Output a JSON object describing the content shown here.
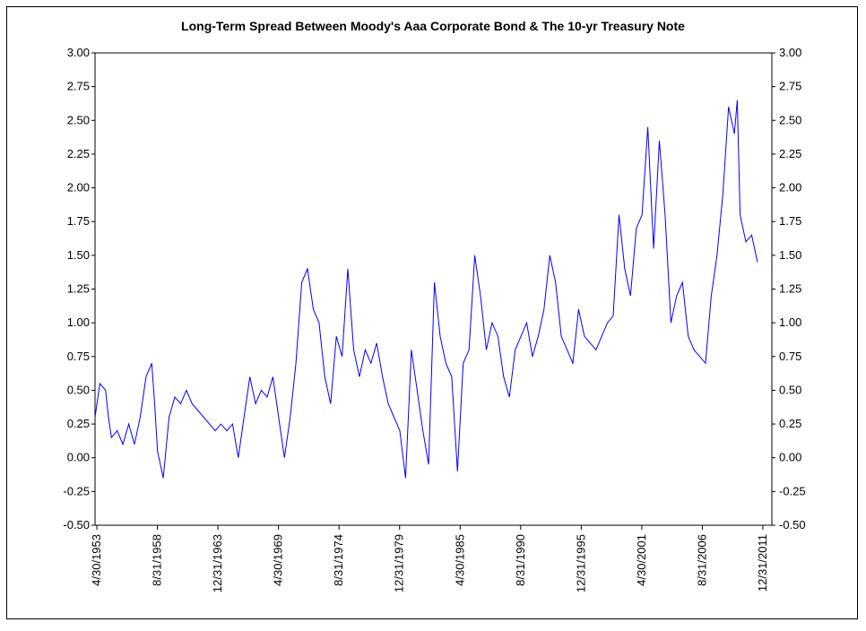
{
  "chart_data": {
    "type": "line",
    "title": "Long-Term Spread Between Moody's Aaa Corporate Bond & The 10-yr Treasury  Note",
    "xlabel": "",
    "ylabel": "",
    "ylim": [
      -0.5,
      3.0
    ],
    "y_ticks": [
      "3.00",
      "2.75",
      "2.50",
      "2.25",
      "2.00",
      "1.75",
      "1.50",
      "1.25",
      "1.00",
      "0.75",
      "0.50",
      "0.25",
      "0.00",
      "-0.25",
      "-0.50"
    ],
    "x_ticks": [
      "4/30/1953",
      "8/31/1958",
      "12/31/1963",
      "4/30/1969",
      "8/31/1974",
      "12/31/1979",
      "4/30/1985",
      "8/31/1990",
      "12/31/1995",
      "4/30/2001",
      "8/31/2006",
      "12/31/2011"
    ],
    "xlim": [
      "1953-04-30",
      "2011-12-31"
    ],
    "grid": false,
    "line_color": "#0000ff",
    "series": [
      {
        "x": [
          "1953-04-30",
          "1953-09-30",
          "1954-03-31",
          "1954-06-30",
          "1954-09-30",
          "1955-03-31",
          "1955-09-30",
          "1956-03-31",
          "1956-09-30",
          "1957-03-31",
          "1957-09-30",
          "1958-03-31",
          "1958-06-30",
          "1958-09-30",
          "1959-03-31",
          "1959-09-30",
          "1960-03-31",
          "1960-09-30",
          "1961-03-31",
          "1961-09-30",
          "1962-03-31",
          "1962-09-30",
          "1963-03-31",
          "1963-09-30",
          "1964-03-31",
          "1964-09-30",
          "1965-03-31",
          "1965-09-30",
          "1966-03-31",
          "1966-09-30",
          "1967-03-31",
          "1967-09-30",
          "1968-03-31",
          "1968-09-30",
          "1969-03-31",
          "1969-09-30",
          "1970-03-31",
          "1970-09-30",
          "1971-03-31",
          "1971-09-30",
          "1972-03-31",
          "1972-09-30",
          "1973-03-31",
          "1973-09-30",
          "1974-03-31",
          "1974-09-30",
          "1975-03-31",
          "1975-09-30",
          "1976-03-31",
          "1976-09-30",
          "1977-03-31",
          "1977-09-30",
          "1978-03-31",
          "1978-09-30",
          "1979-03-31",
          "1979-09-30",
          "1980-03-31",
          "1980-09-30",
          "1981-03-31",
          "1981-09-30",
          "1982-03-31",
          "1982-09-30",
          "1983-03-31",
          "1983-09-30",
          "1984-03-31",
          "1984-09-30",
          "1985-03-31",
          "1985-09-30",
          "1986-03-31",
          "1986-09-30",
          "1987-03-31",
          "1987-09-30",
          "1988-03-31",
          "1988-09-30",
          "1989-03-31",
          "1989-09-30",
          "1990-03-31",
          "1990-09-30",
          "1991-03-31",
          "1991-09-30",
          "1992-03-31",
          "1992-09-30",
          "1993-03-31",
          "1993-09-30",
          "1994-03-31",
          "1994-09-30",
          "1995-03-31",
          "1995-09-30",
          "1996-03-31",
          "1996-09-30",
          "1997-03-31",
          "1997-09-30",
          "1998-03-31",
          "1998-09-30",
          "1999-03-31",
          "1999-09-30",
          "2000-03-31",
          "2000-09-30",
          "2001-03-31",
          "2001-09-30",
          "2002-03-31",
          "2002-09-30",
          "2003-03-31",
          "2003-09-30",
          "2004-03-31",
          "2004-09-30",
          "2005-03-31",
          "2005-09-30",
          "2006-03-31",
          "2006-09-30",
          "2007-03-31",
          "2007-09-30",
          "2008-03-31",
          "2008-09-30",
          "2008-12-31",
          "2009-03-31",
          "2009-09-30",
          "2010-03-31",
          "2010-09-30"
        ],
        "values": [
          0.3,
          0.55,
          0.5,
          0.3,
          0.15,
          0.2,
          0.1,
          0.25,
          0.1,
          0.3,
          0.6,
          0.7,
          0.4,
          0.05,
          -0.15,
          0.3,
          0.45,
          0.4,
          0.5,
          0.4,
          0.35,
          0.3,
          0.25,
          0.2,
          0.25,
          0.2,
          0.25,
          0.0,
          0.3,
          0.6,
          0.4,
          0.5,
          0.45,
          0.6,
          0.3,
          0.0,
          0.3,
          0.7,
          1.3,
          1.4,
          1.1,
          1.0,
          0.6,
          0.4,
          0.9,
          0.75,
          1.4,
          0.8,
          0.6,
          0.8,
          0.7,
          0.85,
          0.6,
          0.4,
          0.3,
          0.2,
          -0.15,
          0.8,
          0.5,
          0.2,
          -0.05,
          1.3,
          0.9,
          0.7,
          0.6,
          -0.1,
          0.7,
          0.8,
          1.5,
          1.2,
          0.8,
          1.0,
          0.9,
          0.6,
          0.45,
          0.8,
          0.9,
          1.0,
          0.75,
          0.9,
          1.1,
          1.5,
          1.3,
          0.9,
          0.8,
          0.7,
          1.1,
          0.9,
          0.85,
          0.8,
          0.9,
          1.0,
          1.05,
          1.8,
          1.4,
          1.2,
          1.7,
          1.8,
          2.45,
          1.55,
          2.35,
          1.8,
          1.0,
          1.2,
          1.3,
          0.9,
          0.8,
          0.75,
          0.7,
          1.2,
          1.5,
          1.95,
          2.6,
          2.4,
          2.65,
          1.8,
          1.6,
          1.65,
          1.45
        ]
      }
    ]
  }
}
